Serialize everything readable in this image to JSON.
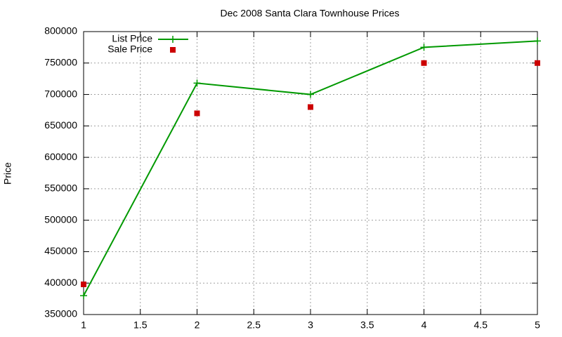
{
  "chart_data": {
    "type": "line",
    "title": "Dec 2008 Santa Clara Townhouse Prices",
    "ylabel": "Price",
    "x": [
      1,
      2,
      3,
      4,
      5
    ],
    "series": [
      {
        "name": "List Price",
        "color": "#009900",
        "style": "linespoints",
        "values": [
          380000,
          718000,
          700000,
          775000,
          785000
        ]
      },
      {
        "name": "Sale Price",
        "color": "#cc0000",
        "style": "points",
        "values": [
          398000,
          670000,
          680000,
          750000,
          750000
        ]
      }
    ],
    "xlim": [
      1,
      5
    ],
    "xticks": [
      1,
      1.5,
      2,
      2.5,
      3,
      3.5,
      4,
      4.5,
      5
    ],
    "ylim": [
      350000,
      800000
    ],
    "yticks": [
      350000,
      400000,
      450000,
      500000,
      550000,
      600000,
      650000,
      700000,
      750000,
      800000
    ],
    "grid": true,
    "legend": "top-left"
  }
}
